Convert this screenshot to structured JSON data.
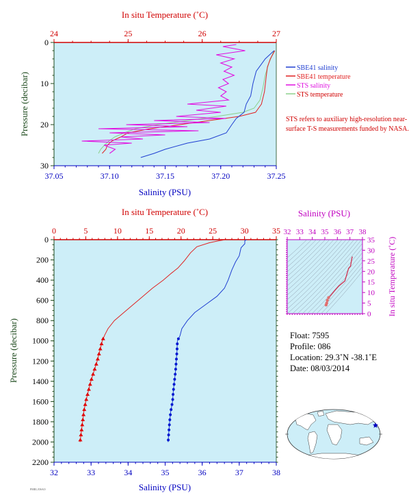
{
  "colors": {
    "salinity": "#1f3ed1",
    "temperature": "#e02020",
    "sts_salinity": "#e010e0",
    "sts_temperature": "#8ad08a",
    "plot_bg": "#cdeef8",
    "temp_axis": "#d00000",
    "sal_axis": "#0000c0",
    "pressure_axis": "#1d4a1d",
    "ts_axis": "#c000c0"
  },
  "top_chart": {
    "temp_title": "In situ Temperature (˚C)",
    "sal_title": "Salinity (PSU)",
    "pressure_title": "Pressure (decibar)",
    "temp_ticks": [
      "24",
      "25",
      "26",
      "27"
    ],
    "sal_ticks": [
      "37.05",
      "37.10",
      "37.15",
      "37.20",
      "37.25"
    ],
    "pressure_ticks": [
      "0",
      "10",
      "20",
      "30"
    ],
    "legend": [
      {
        "label": "SBE41 salinity",
        "color_key": "salinity"
      },
      {
        "label": "SBE41 temperature",
        "color_key": "temperature"
      },
      {
        "label": "STS salinity",
        "color_key": "sts_salinity"
      },
      {
        "label": "STS temperature",
        "color_key": "sts_temperature"
      }
    ],
    "note": "STS refers to auxiliary high-resolution near-surface T-S measurements funded by NASA."
  },
  "bottom_chart": {
    "temp_title": "In situ Temperature (˚C)",
    "sal_title": "Salinity (PSU)",
    "pressure_title": "Pressure (decibar)",
    "temp_ticks": [
      "0",
      "5",
      "10",
      "15",
      "20",
      "25",
      "30",
      "35"
    ],
    "sal_ticks": [
      "32",
      "33",
      "34",
      "35",
      "36",
      "37",
      "38"
    ],
    "pressure_ticks": [
      "0",
      "200",
      "400",
      "600",
      "800",
      "1000",
      "1200",
      "1400",
      "1600",
      "1800",
      "2000",
      "2200"
    ]
  },
  "ts_chart": {
    "sal_title": "Salinity (PSU)",
    "temp_title": "In situ Temperature (˚C)",
    "sal_ticks": [
      "32",
      "33",
      "34",
      "35",
      "36",
      "37",
      "38"
    ],
    "temp_ticks": [
      "0",
      "5",
      "10",
      "15",
      "20",
      "25",
      "30",
      "35"
    ]
  },
  "float_info": {
    "float": "Float:  7595",
    "profile": "Profile:  086",
    "location": "Location:  29.3˚N  -38.1˚E",
    "date": "Date:  08/03/2014"
  },
  "credit": "PMEL/JISAO",
  "chart_data": [
    {
      "type": "line",
      "panel": "near-surface profile",
      "x_axes": {
        "salinity_bottom": [
          37.05,
          37.25
        ],
        "temperature_top": [
          24,
          27
        ]
      },
      "ylim": [
        30,
        0
      ],
      "series": [
        {
          "name": "SBE41 salinity",
          "axis": "salinity",
          "points": [
            [
              37.248,
              2
            ],
            [
              37.24,
              4
            ],
            [
              37.232,
              7
            ],
            [
              37.229,
              10
            ],
            [
              37.227,
              13
            ],
            [
              37.223,
              15
            ],
            [
              37.221,
              17
            ],
            [
              37.214,
              18.5
            ],
            [
              37.21,
              20
            ],
            [
              37.205,
              22
            ],
            [
              37.19,
              23.5
            ],
            [
              37.17,
              24.5
            ],
            [
              37.15,
              26
            ],
            [
              37.14,
              27
            ],
            [
              37.128,
              28
            ]
          ]
        },
        {
          "name": "SBE41 temperature",
          "axis": "temperature",
          "points": [
            [
              26.98,
              2
            ],
            [
              26.92,
              4
            ],
            [
              26.88,
              6
            ],
            [
              26.86,
              9
            ],
            [
              26.84,
              12
            ],
            [
              26.8,
              15
            ],
            [
              26.72,
              17
            ],
            [
              26.5,
              18
            ],
            [
              26.1,
              19
            ],
            [
              25.7,
              20
            ],
            [
              25.3,
              21
            ],
            [
              25.0,
              22
            ],
            [
              24.9,
              23
            ],
            [
              24.78,
              24
            ],
            [
              24.72,
              25
            ],
            [
              24.7,
              26
            ],
            [
              24.65,
              27
            ]
          ]
        },
        {
          "name": "STS salinity",
          "axis": "salinity",
          "points": [
            [
              37.214,
              0.5
            ],
            [
              37.202,
              1
            ],
            [
              37.222,
              2
            ],
            [
              37.196,
              3
            ],
            [
              37.212,
              4
            ],
            [
              37.2,
              5
            ],
            [
              37.21,
              6
            ],
            [
              37.203,
              7
            ],
            [
              37.212,
              8
            ],
            [
              37.202,
              9
            ],
            [
              37.207,
              10
            ],
            [
              37.198,
              11
            ],
            [
              37.205,
              12
            ],
            [
              37.2,
              13
            ],
            [
              37.207,
              14
            ],
            [
              37.17,
              15
            ],
            [
              37.205,
              15.5
            ],
            [
              37.178,
              16.5
            ],
            [
              37.2,
              17
            ],
            [
              37.16,
              18
            ],
            [
              37.205,
              18.5
            ],
            [
              37.14,
              19
            ],
            [
              37.19,
              19.5
            ],
            [
              37.115,
              20
            ],
            [
              37.17,
              20.5
            ],
            [
              37.09,
              21
            ],
            [
              37.18,
              21.5
            ],
            [
              37.1,
              22
            ],
            [
              37.15,
              22.5
            ],
            [
              37.11,
              23
            ],
            [
              37.13,
              23.5
            ],
            [
              37.075,
              24
            ],
            [
              37.12,
              24.5
            ],
            [
              37.095,
              25
            ],
            [
              37.105,
              26
            ],
            [
              37.1,
              27
            ]
          ]
        },
        {
          "name": "STS temperature",
          "axis": "temperature",
          "points": [
            [
              26.97,
              2
            ],
            [
              26.9,
              5
            ],
            [
              26.85,
              8
            ],
            [
              26.82,
              11
            ],
            [
              26.78,
              14
            ],
            [
              26.7,
              16
            ],
            [
              26.55,
              17
            ],
            [
              26.2,
              18
            ],
            [
              25.8,
              19
            ],
            [
              25.4,
              20
            ],
            [
              25.1,
              21
            ],
            [
              24.95,
              22
            ],
            [
              24.82,
              23
            ],
            [
              24.74,
              24
            ],
            [
              24.68,
              25
            ],
            [
              24.63,
              26
            ],
            [
              24.6,
              27
            ]
          ]
        }
      ]
    },
    {
      "type": "line",
      "panel": "full-depth profile",
      "x_axes": {
        "salinity_bottom": [
          32,
          38
        ],
        "temperature_top": [
          0,
          35
        ]
      },
      "ylim": [
        2200,
        0
      ],
      "series": [
        {
          "name": "SBE41 salinity",
          "axis": "salinity",
          "points": [
            [
              37.2,
              0
            ],
            [
              37.15,
              10
            ],
            [
              37.15,
              40
            ],
            [
              37.05,
              80
            ],
            [
              37.0,
              160
            ],
            [
              36.9,
              220
            ],
            [
              36.8,
              300
            ],
            [
              36.7,
              400
            ],
            [
              36.6,
              480
            ],
            [
              36.4,
              560
            ],
            [
              36.1,
              640
            ],
            [
              35.8,
              720
            ],
            [
              35.6,
              800
            ],
            [
              35.45,
              880
            ],
            [
              35.4,
              950
            ],
            [
              35.33,
              1000
            ],
            [
              35.32,
              1100
            ],
            [
              35.3,
              1200
            ],
            [
              35.28,
              1300
            ],
            [
              35.25,
              1400
            ],
            [
              35.22,
              1500
            ],
            [
              35.2,
              1600
            ],
            [
              35.15,
              1700
            ],
            [
              35.12,
              1800
            ],
            [
              35.1,
              1900
            ],
            [
              35.08,
              2000
            ]
          ]
        },
        {
          "name": "SBE41 temperature",
          "axis": "temperature",
          "points": [
            [
              27.0,
              0
            ],
            [
              26.0,
              10
            ],
            [
              24.5,
              30
            ],
            [
              22.5,
              70
            ],
            [
              21.5,
              130
            ],
            [
              20.5,
              210
            ],
            [
              19.5,
              280
            ],
            [
              18.5,
              330
            ],
            [
              17.2,
              400
            ],
            [
              15.5,
              480
            ],
            [
              14.0,
              560
            ],
            [
              12.5,
              640
            ],
            [
              11.0,
              720
            ],
            [
              9.5,
              800
            ],
            [
              8.5,
              880
            ],
            [
              8.0,
              940
            ],
            [
              7.6,
              1000
            ],
            [
              7.2,
              1100
            ],
            [
              6.8,
              1200
            ],
            [
              6.3,
              1300
            ],
            [
              5.8,
              1400
            ],
            [
              5.4,
              1500
            ],
            [
              5.0,
              1600
            ],
            [
              4.7,
              1700
            ],
            [
              4.5,
              1800
            ],
            [
              4.3,
              1900
            ],
            [
              4.1,
              2000
            ]
          ]
        }
      ]
    },
    {
      "type": "line",
      "panel": "T-S diagram",
      "xlim": [
        32,
        38
      ],
      "ylim": [
        0,
        35
      ],
      "series": [
        {
          "axis": "salinity-temperature",
          "points": [
            [
              35.1,
              4.1
            ],
            [
              35.15,
              5.0
            ],
            [
              35.2,
              6.3
            ],
            [
              35.3,
              7.6
            ],
            [
              35.45,
              8.5
            ],
            [
              35.8,
              11.0
            ],
            [
              36.1,
              13.0
            ],
            [
              36.6,
              15.5
            ],
            [
              36.8,
              19.5
            ],
            [
              36.9,
              21.5
            ],
            [
              37.05,
              22.5
            ],
            [
              37.15,
              26.0
            ],
            [
              37.2,
              27.0
            ]
          ]
        }
      ]
    }
  ]
}
